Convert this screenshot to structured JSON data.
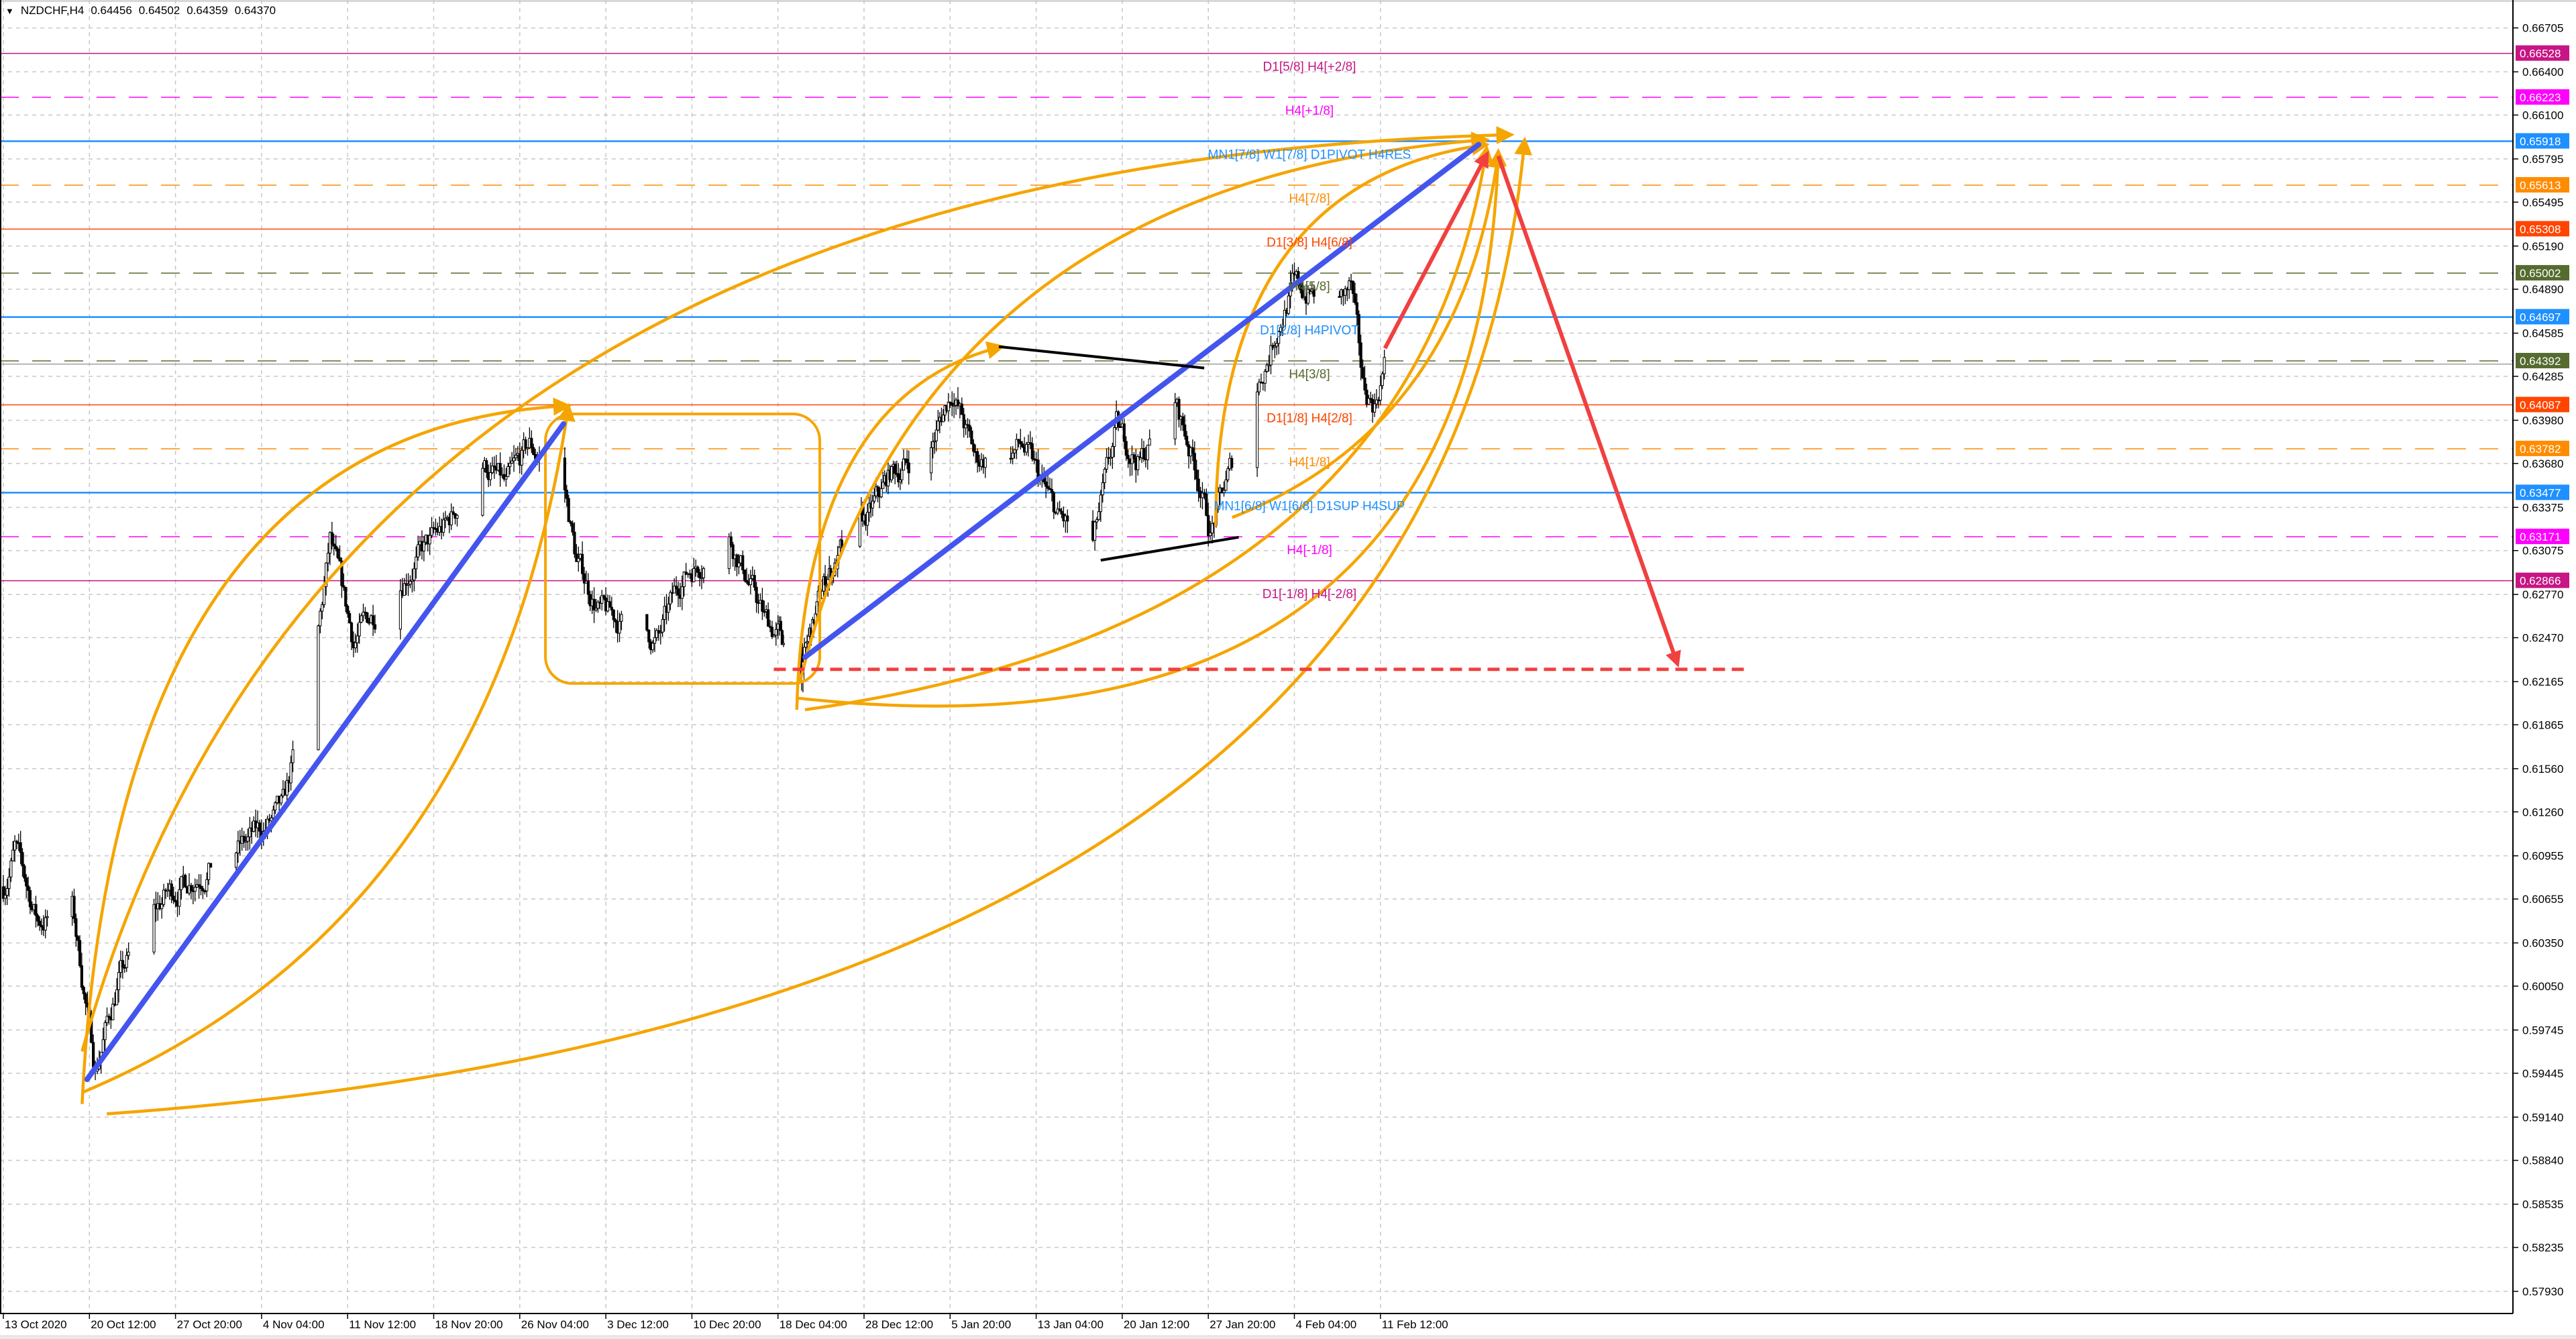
{
  "header": {
    "symbol": "NZDCHF,H4",
    "open": "0.64456",
    "high": "0.64502",
    "low": "0.64359",
    "close": "0.64370"
  },
  "colors": {
    "bull_candle": "#ffffff",
    "bear_candle": "#000000",
    "trendline": "#4455ee",
    "arc": "#f5a500",
    "projection": "#f04040",
    "grid": "#c0c0c0"
  },
  "chart_data": {
    "type": "candlestick",
    "symbol": "NZDCHF",
    "timeframe": "H4",
    "ylim": [
      0.578,
      0.668
    ],
    "grid": true,
    "y_ticks": [
      "0.66705",
      "0.66400",
      "0.66100",
      "0.65795",
      "0.65495",
      "0.65190",
      "0.64890",
      "0.64585",
      "0.64285",
      "0.63980",
      "0.63680",
      "0.63375",
      "0.63075",
      "0.62770",
      "0.62470",
      "0.62165",
      "0.61865",
      "0.61560",
      "0.61260",
      "0.60955",
      "0.60655",
      "0.60350",
      "0.60050",
      "0.59745",
      "0.59445",
      "0.59140",
      "0.58840",
      "0.58535",
      "0.58235",
      "0.57930"
    ],
    "x_ticks": [
      "13 Oct 2020",
      "20 Oct 12:00",
      "27 Oct 20:00",
      "4 Nov 04:00",
      "11 Nov 12:00",
      "18 Nov 20:00",
      "26 Nov 04:00",
      "3 Dec 12:00",
      "10 Dec 20:00",
      "18 Dec 04:00",
      "28 Dec 12:00",
      "5 Jan 20:00",
      "13 Jan 04:00",
      "20 Jan 12:00",
      "27 Jan 20:00",
      "4 Feb 04:00",
      "11 Feb 12:00"
    ],
    "price_path": [
      {
        "date": "2020-10-13",
        "close": 0.6074
      },
      {
        "date": "2020-10-14",
        "close": 0.61
      },
      {
        "date": "2020-10-16",
        "close": 0.605
      },
      {
        "date": "2020-10-19",
        "close": 0.606
      },
      {
        "date": "2020-10-21",
        "close": 0.5948
      },
      {
        "date": "2020-10-23",
        "close": 0.601
      },
      {
        "date": "2020-10-27",
        "close": 0.6068
      },
      {
        "date": "2020-10-30",
        "close": 0.6085
      },
      {
        "date": "2020-11-03",
        "close": 0.6105
      },
      {
        "date": "2020-11-06",
        "close": 0.6126
      },
      {
        "date": "2020-11-09",
        "close": 0.6247
      },
      {
        "date": "2020-11-10",
        "close": 0.6312
      },
      {
        "date": "2020-11-12",
        "close": 0.6245
      },
      {
        "date": "2020-11-16",
        "close": 0.629
      },
      {
        "date": "2020-11-20",
        "close": 0.6325
      },
      {
        "date": "2020-11-23",
        "close": 0.637
      },
      {
        "date": "2020-11-25",
        "close": 0.635
      },
      {
        "date": "2020-11-27",
        "close": 0.638
      },
      {
        "date": "2020-11-30",
        "close": 0.635
      },
      {
        "date": "2020-12-01",
        "close": 0.63
      },
      {
        "date": "2020-12-03",
        "close": 0.6265
      },
      {
        "date": "2020-12-08",
        "close": 0.6245
      },
      {
        "date": "2020-12-10",
        "close": 0.629
      },
      {
        "date": "2020-12-14",
        "close": 0.632
      },
      {
        "date": "2020-12-17",
        "close": 0.626
      },
      {
        "date": "2020-12-21",
        "close": 0.6225
      },
      {
        "date": "2020-12-24",
        "close": 0.629
      },
      {
        "date": "2020-12-29",
        "close": 0.633
      },
      {
        "date": "2020-12-31",
        "close": 0.636
      },
      {
        "date": "2021-01-04",
        "close": 0.638
      },
      {
        "date": "2021-01-06",
        "close": 0.642
      },
      {
        "date": "2021-01-08",
        "close": 0.637
      },
      {
        "date": "2021-01-12",
        "close": 0.638
      },
      {
        "date": "2021-01-15",
        "close": 0.633
      },
      {
        "date": "2021-01-18",
        "close": 0.631
      },
      {
        "date": "2021-01-20",
        "close": 0.639
      },
      {
        "date": "2021-01-22",
        "close": 0.637
      },
      {
        "date": "2021-01-25",
        "close": 0.641
      },
      {
        "date": "2021-01-27",
        "close": 0.636
      },
      {
        "date": "2021-01-28",
        "close": 0.632
      },
      {
        "date": "2021-02-01",
        "close": 0.642
      },
      {
        "date": "2021-02-03",
        "close": 0.647
      },
      {
        "date": "2021-02-04",
        "close": 0.649
      },
      {
        "date": "2021-02-08",
        "close": 0.648
      },
      {
        "date": "2021-02-09",
        "close": 0.649
      },
      {
        "date": "2021-02-10",
        "close": 0.642
      },
      {
        "date": "2021-02-11",
        "close": 0.641
      },
      {
        "date": "2021-02-11T20:00",
        "close": 0.6437
      }
    ],
    "levels": [
      {
        "price": "0.66528",
        "label": "D1[5/8] H4[+2/8]",
        "color": "#c71585",
        "style": "solid"
      },
      {
        "price": "0.66223",
        "label": "H4[+1/8]",
        "color": "#ff00ff",
        "style": "dashed"
      },
      {
        "price": "0.65918",
        "label": "MN1[7/8] W1[7/8] D1PIVOT H4RES",
        "color": "#1e90ff",
        "style": "solid"
      },
      {
        "price": "0.65613",
        "label": "H4[7/8]",
        "color": "#ff8c00",
        "style": "dashed"
      },
      {
        "price": "0.65308",
        "label": "D1[3/8] H4[6/8]",
        "color": "#ff4500",
        "style": "solid"
      },
      {
        "price": "0.65002",
        "label": "H4[5/8]",
        "color": "#556b2f",
        "style": "dashed"
      },
      {
        "price": "0.64697",
        "label": "D1[2/8] H4PIVOT",
        "color": "#1e90ff",
        "style": "solid"
      },
      {
        "price": "0.64392",
        "label": "H4[3/8]",
        "color": "#556b2f",
        "style": "dashed"
      },
      {
        "price": "0.64087",
        "label": "D1[1/8] H4[2/8]",
        "color": "#ff4500",
        "style": "solid"
      },
      {
        "price": "0.63782",
        "label": "H4[1/8]",
        "color": "#ff8c00",
        "style": "dashed"
      },
      {
        "price": "0.63477",
        "label": "MN1[6/8] W1[6/8] D1SUP H4SUP",
        "color": "#1e90ff",
        "style": "solid"
      },
      {
        "price": "0.63171",
        "label": "H4[-1/8]",
        "color": "#ff00ff",
        "style": "dashed"
      },
      {
        "price": "0.62866",
        "label": "D1[-1/8] H4[-2/8]",
        "color": "#c71585",
        "style": "solid"
      }
    ],
    "current_price": 0.6437,
    "target_price": 0.6225
  }
}
